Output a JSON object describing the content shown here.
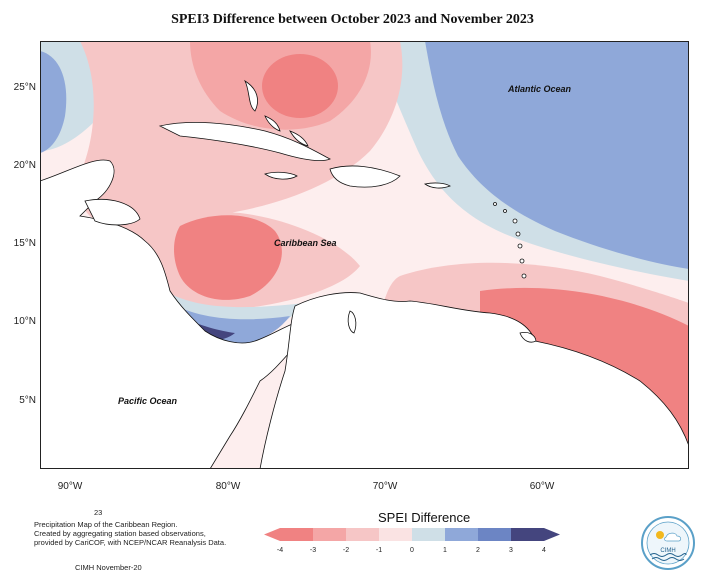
{
  "title": "SPEI3 Difference between October 2023 and November 2023",
  "lat_labels": [
    "25°N",
    "20°N",
    "15°N",
    "10°N",
    "5°N"
  ],
  "lon_labels": [
    "90°W",
    "80°W",
    "70°W",
    "60°W"
  ],
  "regions": {
    "atlantic": "Atlantic Ocean",
    "caribbean": "Caribbean Sea",
    "pacific": "Pacific Ocean"
  },
  "legend": {
    "title": "SPEI Difference",
    "ticks": [
      "-4",
      "-3",
      "-2",
      "-1",
      "0",
      "1",
      "2",
      "3",
      "4"
    ],
    "colors": [
      "#f08282",
      "#f4a6a6",
      "#f6c6c6",
      "#fae3e3",
      "#fdf3f3",
      "#cfdfe7",
      "#8fa8d9",
      "#6c85c4",
      "#44457e"
    ]
  },
  "footer": {
    "number": "23",
    "line1": "Precipitation Map of the Caribbean Region.",
    "line2": "Created by aggregating station based observations,",
    "line3": "provided by CariCOF, with NCEP/NCAR Reanalysis Data.",
    "credit": "CIMH November-20",
    "logo_text": "CIMH"
  }
}
